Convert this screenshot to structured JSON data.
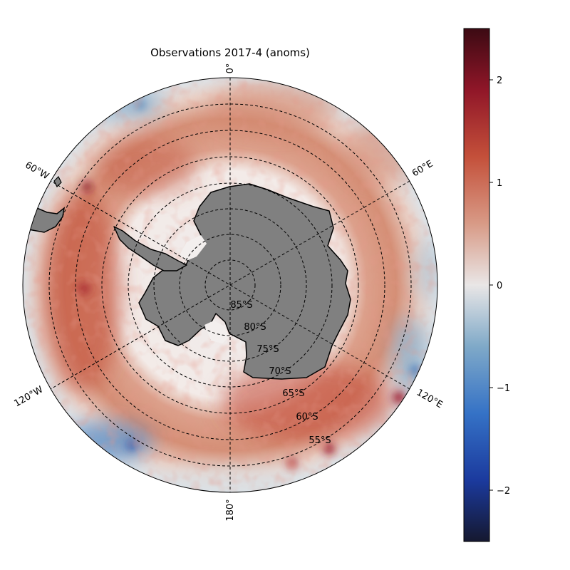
{
  "title": "Observations 2017-4 (anoms)",
  "map": {
    "projection": "south polar stereographic",
    "extent_lat": -50,
    "land_color": "#808080",
    "ocean_field": "sea surface temperature anomaly",
    "meridian_labels": [
      {
        "lon": 0,
        "text": "0°"
      },
      {
        "lon": 60,
        "text": "60°E"
      },
      {
        "lon": 120,
        "text": "120°E"
      },
      {
        "lon": 180,
        "text": "180°"
      },
      {
        "lon": -120,
        "text": "120°W"
      },
      {
        "lon": -60,
        "text": "60°W"
      }
    ],
    "parallel_labels": [
      {
        "lat": -85,
        "text": "85°S"
      },
      {
        "lat": -80,
        "text": "80°S"
      },
      {
        "lat": -75,
        "text": "75°S"
      },
      {
        "lat": -70,
        "text": "70°S"
      },
      {
        "lat": -65,
        "text": "65°S"
      },
      {
        "lat": -60,
        "text": "60°S"
      },
      {
        "lat": -55,
        "text": "55°S"
      }
    ]
  },
  "colorbar": {
    "min": -2.5,
    "max": 2.5,
    "ticks": [
      {
        "value": 2,
        "text": "2"
      },
      {
        "value": 1,
        "text": "1"
      },
      {
        "value": 0,
        "text": "0"
      },
      {
        "value": -1,
        "text": "−1"
      },
      {
        "value": -2,
        "text": "−2"
      }
    ],
    "colormap": "balance",
    "stops": [
      "#15182f",
      "#1b3a9e",
      "#3572c6",
      "#7fa9c8",
      "#e9e6e6",
      "#d89a86",
      "#c4503a",
      "#901628",
      "#3c0a13"
    ]
  }
}
